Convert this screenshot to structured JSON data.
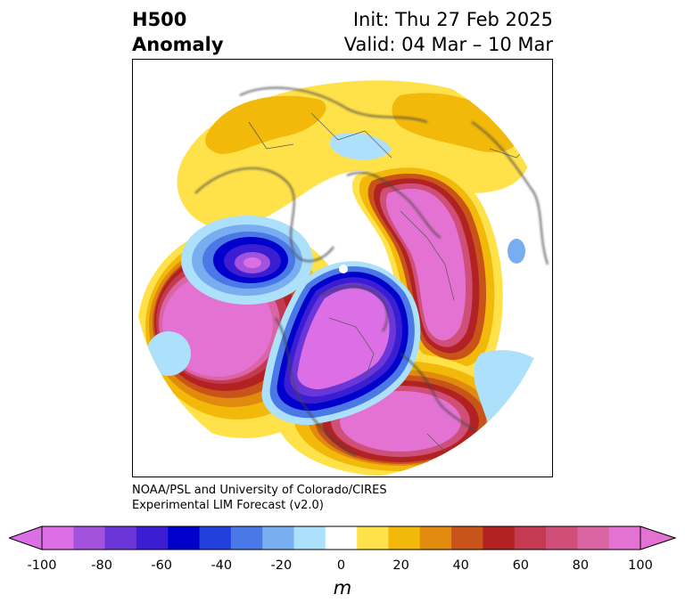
{
  "header": {
    "title_line1": "H500",
    "title_line2": "Anomaly",
    "init": "Init: Thu 27 Feb 2025",
    "valid": "Valid: 04 Mar – 10 Mar"
  },
  "credit": {
    "line1": "NOAA/PSL and University of Colorado/CIRES",
    "line2": "Experimental LIM Forecast (v2.0)"
  },
  "map": {
    "projection": "north-polar-stereographic",
    "anomaly_centers": [
      {
        "region": "North Pacific (west of North America)",
        "sign": "positive",
        "peak_m": 100
      },
      {
        "region": "Canada / Arctic North America",
        "sign": "negative",
        "peak_m": -100
      },
      {
        "region": "Russia / Siberia",
        "sign": "positive",
        "peak_m": 100
      },
      {
        "region": "North Atlantic / Europe",
        "sign": "positive",
        "peak_m": 100
      },
      {
        "region": "East Asia / Japan",
        "sign": "negative",
        "peak_m": -80
      },
      {
        "region": "Scandinavia / northern Europe",
        "sign": "positive",
        "peak_m": 30
      },
      {
        "region": "North Africa / Middle East",
        "sign": "negative",
        "peak_m": -20
      }
    ]
  },
  "colorbar": {
    "unit": "m",
    "tick_labels": [
      "-100",
      "-80",
      "-60",
      "-40",
      "-20",
      "0",
      "20",
      "40",
      "60",
      "80",
      "100"
    ],
    "bins": [
      -100,
      -90,
      -80,
      -70,
      -60,
      -50,
      -40,
      -30,
      -20,
      -10,
      10,
      20,
      30,
      40,
      50,
      60,
      70,
      80,
      90,
      100
    ],
    "colors": [
      "#dc6fe6",
      "#a252dc",
      "#6b36d8",
      "#3b1ed4",
      "#0000cc",
      "#2440dc",
      "#4a78e6",
      "#78aef0",
      "#ade0fa",
      "#ffffff",
      "#ffe14a",
      "#f2b80a",
      "#e08a0e",
      "#c8541a",
      "#b22222",
      "#c43a50",
      "#cf4f78",
      "#da64a4",
      "#e472d2"
    ],
    "extend": "both",
    "under_color": "#dc6fe6",
    "over_color": "#e472d2"
  }
}
